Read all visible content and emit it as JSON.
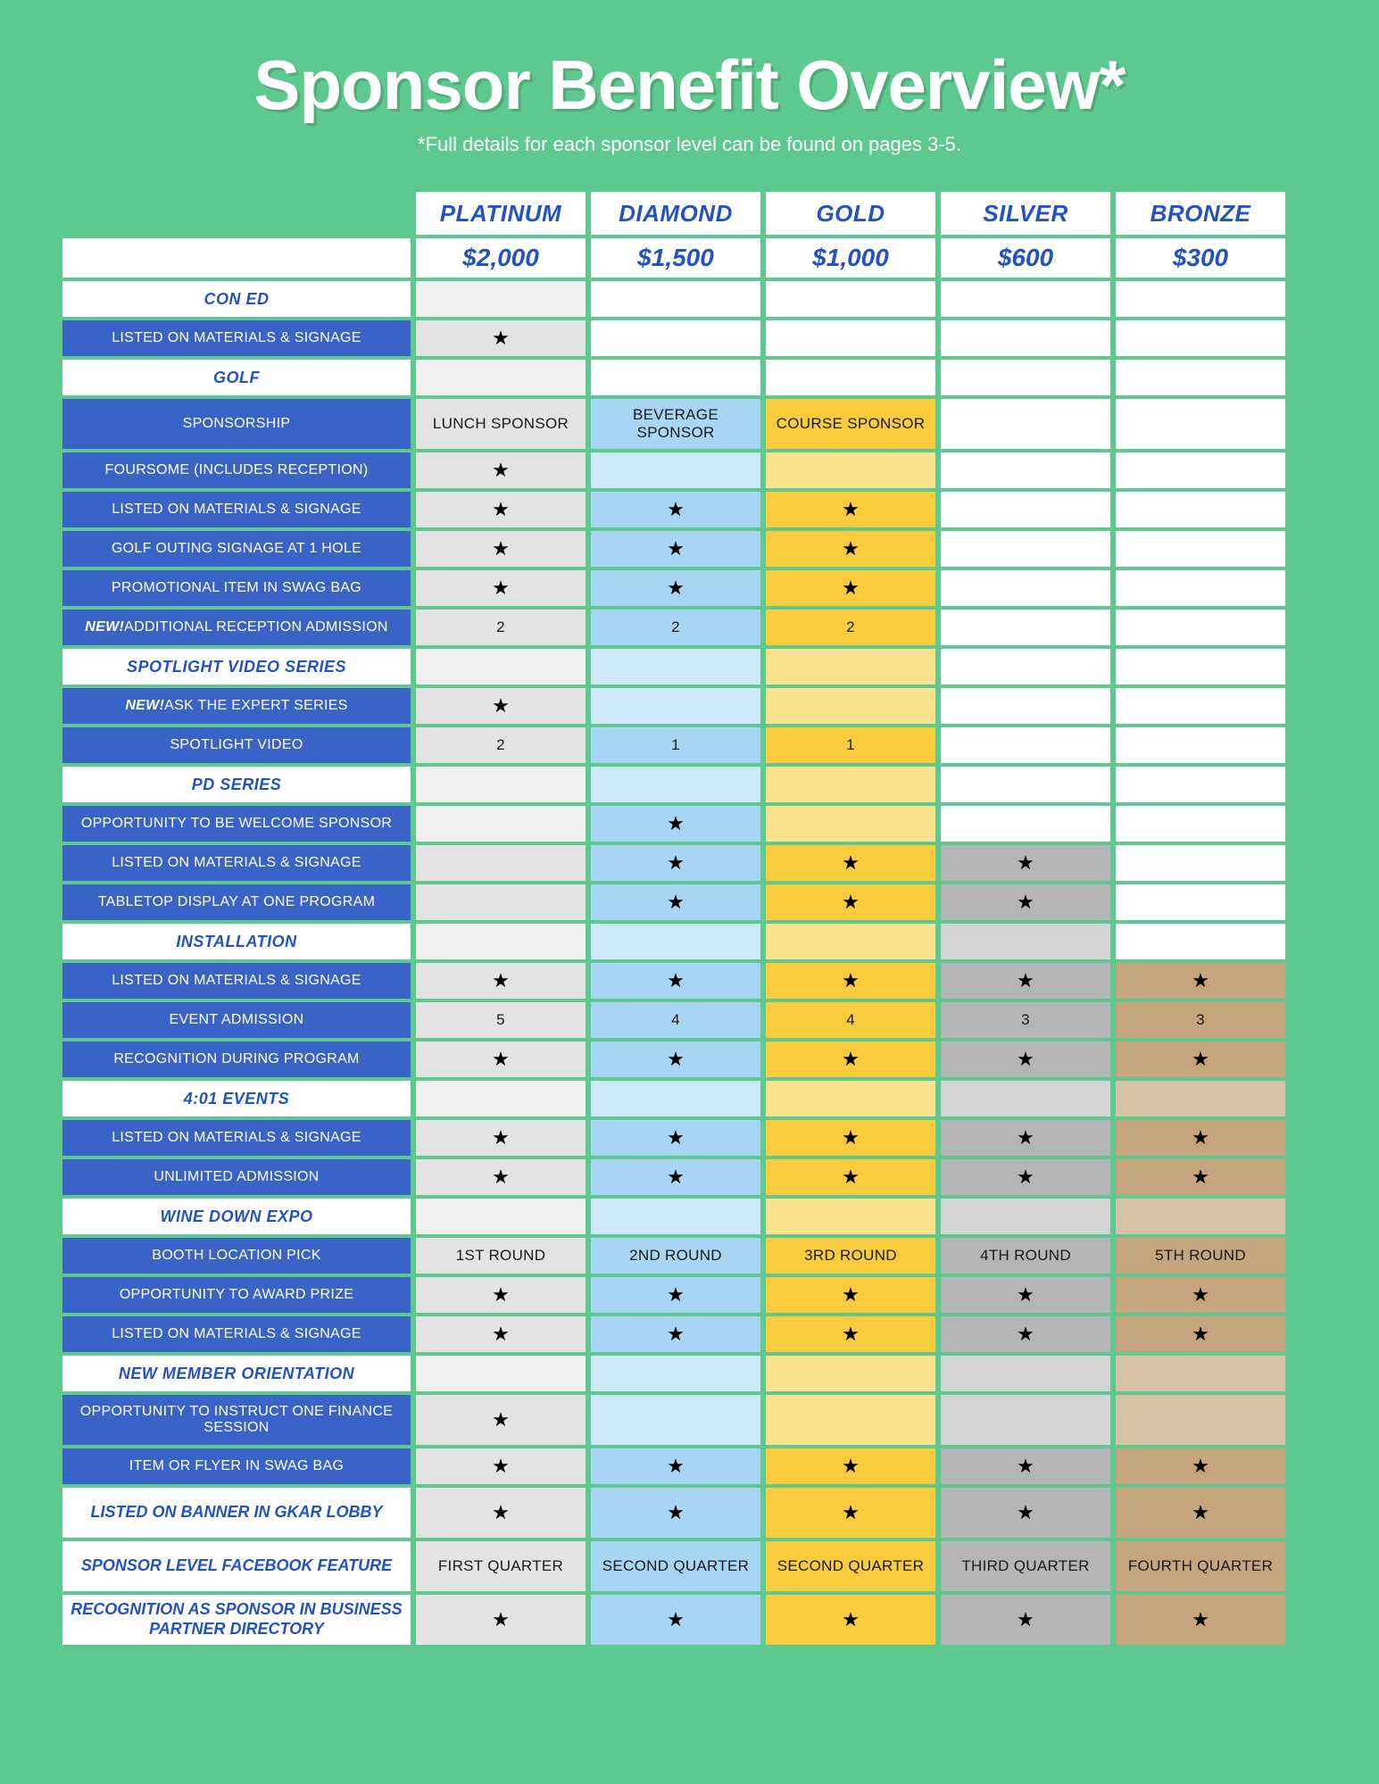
{
  "title": "Sponsor Benefit Overview*",
  "subtitle": "*Full details for each sponsor level can be found on pages 3-5.",
  "tiers": [
    {
      "id": "platinum",
      "name": "PLATINUM",
      "price": "$2,000"
    },
    {
      "id": "diamond",
      "name": "DIAMOND",
      "price": "$1,500"
    },
    {
      "id": "gold",
      "name": "GOLD",
      "price": "$1,000"
    },
    {
      "id": "silver",
      "name": "SILVER",
      "price": "$600"
    },
    {
      "id": "bronze",
      "name": "BRONZE",
      "price": "$300"
    }
  ],
  "tier_colors": {
    "platinum": "#e4e3e3",
    "diamond": "#a9d5f5",
    "gold": "#f8cc3d",
    "silver": "#b3b5b7",
    "bronze": "#c5a57d"
  },
  "page_bg": "#5ec98f",
  "header_text_color": "#2252c7",
  "benefit_bg": "#3a63c8",
  "rows": [
    {
      "type": "section",
      "label": "CON ED",
      "active": [
        "platinum"
      ]
    },
    {
      "type": "benefit",
      "label": "LISTED ON MATERIALS & SIGNAGE",
      "active": [
        "platinum"
      ],
      "cells": {
        "platinum": "★"
      }
    },
    {
      "type": "section",
      "label": "GOLF",
      "active": [
        "platinum"
      ]
    },
    {
      "type": "benefit",
      "label": "SPONSORSHIP",
      "tall": true,
      "active": [
        "platinum",
        "diamond",
        "gold"
      ],
      "cells": {
        "platinum": "LUNCH SPONSOR",
        "diamond": "BEVERAGE SPONSOR",
        "gold": "COURSE SPONSOR"
      }
    },
    {
      "type": "benefit",
      "label": "FOURSOME (INCLUDES RECEPTION)",
      "active": [
        "platinum",
        "diamond",
        "gold"
      ],
      "lite_override": [
        "diamond",
        "gold"
      ],
      "cells": {
        "platinum": "★"
      }
    },
    {
      "type": "benefit",
      "label": "LISTED ON MATERIALS & SIGNAGE",
      "active": [
        "platinum",
        "diamond",
        "gold"
      ],
      "cells": {
        "platinum": "★",
        "diamond": "★",
        "gold": "★"
      }
    },
    {
      "type": "benefit",
      "label": "GOLF OUTING SIGNAGE AT 1 HOLE",
      "active": [
        "platinum",
        "diamond",
        "gold"
      ],
      "cells": {
        "platinum": "★",
        "diamond": "★",
        "gold": "★"
      }
    },
    {
      "type": "benefit",
      "label": "PROMOTIONAL ITEM IN SWAG BAG",
      "active": [
        "platinum",
        "diamond",
        "gold"
      ],
      "cells": {
        "platinum": "★",
        "diamond": "★",
        "gold": "★"
      }
    },
    {
      "type": "benefit",
      "html_label": "<span class='new-tag'>NEW!</span> ADDITIONAL RECEPTION ADMISSION",
      "active": [
        "platinum",
        "diamond",
        "gold"
      ],
      "cells": {
        "platinum": "2",
        "diamond": "2",
        "gold": "2"
      }
    },
    {
      "type": "section",
      "label": "SPOTLIGHT VIDEO SERIES",
      "active": [
        "platinum"
      ]
    },
    {
      "type": "benefit",
      "html_label": "<span class='new-tag'>NEW!</span> ASK THE EXPERT SERIES",
      "active": [
        "platinum",
        "diamond",
        "gold"
      ],
      "lite_override": [
        "diamond",
        "gold"
      ],
      "cells": {
        "platinum": "★"
      }
    },
    {
      "type": "benefit",
      "label": "SPOTLIGHT VIDEO",
      "active": [
        "platinum",
        "diamond",
        "gold"
      ],
      "cells": {
        "platinum": "2",
        "diamond": "1",
        "gold": "1"
      }
    },
    {
      "type": "section",
      "label": "PD SERIES",
      "active": []
    },
    {
      "type": "benefit",
      "label": "OPPORTUNITY TO BE WELCOME SPONSOR",
      "active": [
        "diamond",
        "gold"
      ],
      "lite_override": [
        "platinum",
        "gold"
      ],
      "extra_active_bg": [
        "platinum"
      ],
      "cells": {
        "diamond": "★"
      }
    },
    {
      "type": "benefit",
      "label": "LISTED ON MATERIALS & SIGNAGE",
      "active": [
        "diamond",
        "gold",
        "silver"
      ],
      "extra_active_bg": [
        "platinum"
      ],
      "cells": {
        "diamond": "★",
        "gold": "★",
        "silver": "★"
      }
    },
    {
      "type": "benefit",
      "label": "TABLETOP DISPLAY AT ONE PROGRAM",
      "active": [
        "diamond",
        "gold",
        "silver"
      ],
      "extra_active_bg": [
        "platinum"
      ],
      "cells": {
        "diamond": "★",
        "gold": "★",
        "silver": "★"
      }
    },
    {
      "type": "section",
      "label": "INSTALLATION",
      "active": [
        "platinum",
        "silver"
      ]
    },
    {
      "type": "benefit",
      "label": "LISTED ON MATERIALS & SIGNAGE",
      "active": [
        "platinum",
        "diamond",
        "gold",
        "silver",
        "bronze"
      ],
      "cells": {
        "platinum": "★",
        "diamond": "★",
        "gold": "★",
        "silver": "★",
        "bronze": "★"
      }
    },
    {
      "type": "benefit",
      "label": "EVENT ADMISSION",
      "active": [
        "platinum",
        "diamond",
        "gold",
        "silver",
        "bronze"
      ],
      "cells": {
        "platinum": "5",
        "diamond": "4",
        "gold": "4",
        "silver": "3",
        "bronze": "3"
      }
    },
    {
      "type": "benefit",
      "label": "RECOGNITION DURING PROGRAM",
      "active": [
        "platinum",
        "diamond",
        "gold",
        "silver",
        "bronze"
      ],
      "cells": {
        "platinum": "★",
        "diamond": "★",
        "gold": "★",
        "silver": "★",
        "bronze": "★"
      }
    },
    {
      "type": "section",
      "label": "4:01 EVENTS",
      "active": [
        "platinum",
        "silver",
        "bronze"
      ]
    },
    {
      "type": "benefit",
      "label": "LISTED ON MATERIALS & SIGNAGE",
      "active": [
        "platinum",
        "diamond",
        "gold",
        "silver",
        "bronze"
      ],
      "cells": {
        "platinum": "★",
        "diamond": "★",
        "gold": "★",
        "silver": "★",
        "bronze": "★"
      }
    },
    {
      "type": "benefit",
      "label": "UNLIMITED ADMISSION",
      "active": [
        "platinum",
        "diamond",
        "gold",
        "silver",
        "bronze"
      ],
      "cells": {
        "platinum": "★",
        "diamond": "★",
        "gold": "★",
        "silver": "★",
        "bronze": "★"
      }
    },
    {
      "type": "section",
      "label": "WINE DOWN EXPO",
      "active": [
        "platinum",
        "silver",
        "bronze"
      ]
    },
    {
      "type": "benefit",
      "label": "BOOTH LOCATION PICK",
      "active": [
        "platinum",
        "diamond",
        "gold",
        "silver",
        "bronze"
      ],
      "cells": {
        "platinum": "1ST ROUND",
        "diamond": "2ND ROUND",
        "gold": "3RD ROUND",
        "silver": "4TH ROUND",
        "bronze": "5TH ROUND"
      }
    },
    {
      "type": "benefit",
      "label": "OPPORTUNITY TO AWARD PRIZE",
      "active": [
        "platinum",
        "diamond",
        "gold",
        "silver",
        "bronze"
      ],
      "cells": {
        "platinum": "★",
        "diamond": "★",
        "gold": "★",
        "silver": "★",
        "bronze": "★"
      }
    },
    {
      "type": "benefit",
      "label": "LISTED ON MATERIALS & SIGNAGE",
      "active": [
        "platinum",
        "diamond",
        "gold",
        "silver",
        "bronze"
      ],
      "cells": {
        "platinum": "★",
        "diamond": "★",
        "gold": "★",
        "silver": "★",
        "bronze": "★"
      }
    },
    {
      "type": "section",
      "label": "NEW MEMBER ORIENTATION",
      "active": [
        "platinum",
        "silver",
        "bronze"
      ]
    },
    {
      "type": "benefit",
      "label": "OPPORTUNITY TO INSTRUCT  ONE FINANCE SESSION",
      "tall": true,
      "active": [
        "platinum",
        "diamond",
        "gold",
        "silver",
        "bronze"
      ],
      "lite_override": [
        "diamond",
        "gold",
        "silver",
        "bronze"
      ],
      "cells": {
        "platinum": "★"
      }
    },
    {
      "type": "benefit",
      "label": "ITEM OR FLYER IN SWAG BAG",
      "active": [
        "platinum",
        "diamond",
        "gold",
        "silver",
        "bronze"
      ],
      "cells": {
        "platinum": "★",
        "diamond": "★",
        "gold": "★",
        "silver": "★",
        "bronze": "★"
      }
    },
    {
      "type": "footer",
      "label": "LISTED ON BANNER IN GKAR LOBBY",
      "tall": true,
      "active": [
        "platinum",
        "diamond",
        "gold",
        "silver",
        "bronze"
      ],
      "cells": {
        "platinum": "★",
        "diamond": "★",
        "gold": "★",
        "silver": "★",
        "bronze": "★"
      }
    },
    {
      "type": "footer",
      "label": "SPONSOR LEVEL FACEBOOK FEATURE",
      "tall": true,
      "active": [
        "platinum",
        "diamond",
        "gold",
        "silver",
        "bronze"
      ],
      "cells": {
        "platinum": "FIRST QUARTER",
        "diamond": "SECOND QUARTER",
        "gold": "SECOND QUARTER",
        "silver": "THIRD QUARTER",
        "bronze": "FOURTH QUARTER"
      }
    },
    {
      "type": "footer",
      "label": "RECOGNITION AS SPONSOR IN BUSINESS PARTNER DIRECTORY",
      "tall": true,
      "active": [
        "platinum",
        "diamond",
        "gold",
        "silver",
        "bronze"
      ],
      "cells": {
        "platinum": "★",
        "diamond": "★",
        "gold": "★",
        "silver": "★",
        "bronze": "★"
      }
    }
  ]
}
